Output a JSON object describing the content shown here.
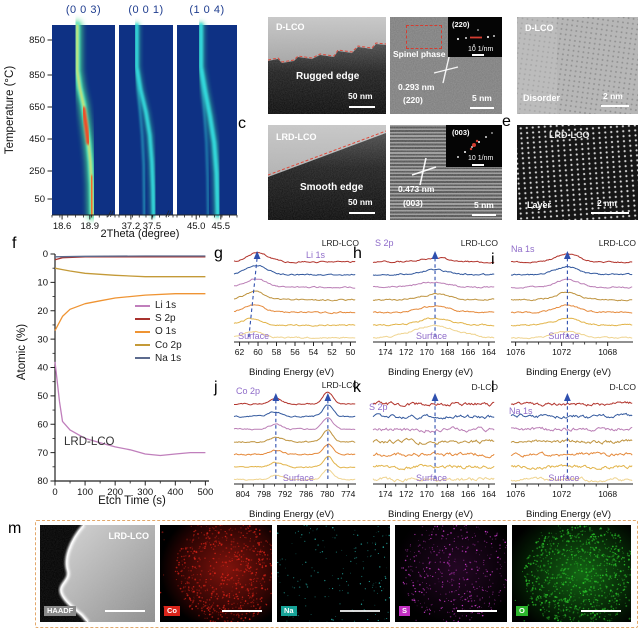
{
  "colors": {
    "navy_title": "#1f3d8f",
    "arrow_blue": "#2e4fae",
    "purple_label": "#8f6cc9",
    "dashed_border": "#e4a96b",
    "heat_bg": "#0e3184",
    "trace_colors": [
      "#b2342c",
      "#33599e",
      "#bb7fb6",
      "#bf9440",
      "#e58a3c",
      "#e2b44a",
      "#efd490"
    ]
  },
  "letters": {
    "c": "c",
    "e": "e",
    "f": "f",
    "g": "g",
    "h": "h",
    "i": "i",
    "j": "j",
    "k": "k",
    "l": "l",
    "m": "m"
  },
  "tem": {
    "d_rugged": {
      "sample": "D-LCO",
      "caption": "Rugged edge",
      "scale_bar": "50 nm"
    },
    "spinel": {
      "caption": "Spinel phase",
      "d_spacing": "0.293 nm",
      "plane": "(220)",
      "scale_bar": "5 nm",
      "inset_plane": "(220)",
      "inset_scale": "10 1/nm"
    },
    "d_disorder": {
      "sample": "D-LCO",
      "caption": "Disorder",
      "scale_bar": "2 nm"
    },
    "lrd_smooth": {
      "sample": "LRD-LCO",
      "caption": "Smooth edge",
      "scale_bar": "50 nm"
    },
    "lrd_003": {
      "d_spacing": "0.473 nm",
      "plane": "(003)",
      "scale_bar": "5 nm",
      "inset_plane": "(003)",
      "inset_scale": "10 1/nm"
    },
    "lrd_layer": {
      "sample": "LRD-LCO",
      "caption": "Layer",
      "scale_bar": "2 nm"
    }
  },
  "eds": {
    "sample": "LRD-LCO",
    "maps": [
      {
        "name": "HAADF",
        "color": "#8a8a8a"
      },
      {
        "name": "Co",
        "color": "#da251b"
      },
      {
        "name": "Na",
        "color": "#17a398"
      },
      {
        "name": "S",
        "color": "#c32fc3"
      },
      {
        "name": "O",
        "color": "#2db52d"
      }
    ]
  },
  "chart_data": [
    {
      "id": "xrd",
      "type": "heatmap",
      "ylabel": "Temperature (°C)",
      "xlabel": "2Theta (degree)",
      "axis_break": "//",
      "y_ticks": [
        "850",
        "850",
        "650",
        "450",
        "250",
        "50"
      ],
      "panels": [
        {
          "title": "(0 0 3)",
          "x_ticks": [
            "18.6",
            "18.9"
          ]
        },
        {
          "title": "(0 0 1)",
          "x_ticks": [
            "37.2",
            "37.5"
          ]
        },
        {
          "title": "(1 0 4)",
          "x_ticks": [
            "45.0",
            "45.5"
          ]
        }
      ],
      "description": "In-situ XRD intensity maps: (0 0 3), (0 0 1) and (1 0 4) reflections shift to higher angle on cooling from ~900 to 50 °C; jet colormap on dark-blue background"
    },
    {
      "id": "f",
      "type": "line",
      "xlabel": "Etch Time  (s)",
      "ylabel": "Atomic (%)",
      "annotation": "LRD-LCO",
      "x_ticks": [
        0,
        100,
        200,
        300,
        400,
        500
      ],
      "y_ticks": [
        0,
        10,
        20,
        30,
        40,
        50,
        60,
        70,
        80
      ],
      "xlim": [
        0,
        512
      ],
      "ylim": [
        0,
        80
      ],
      "y_inverted": true,
      "legend_position": "right-middle",
      "series": [
        {
          "name": "Li 1s",
          "color": "#c07fbc",
          "x": [
            0,
            15,
            25,
            50,
            100,
            150,
            200,
            250,
            300,
            350,
            400,
            450,
            500
          ],
          "y": [
            38,
            52,
            59,
            62,
            65,
            66.5,
            68,
            69,
            70.5,
            71,
            70.5,
            70,
            70
          ]
        },
        {
          "name": "S 2p",
          "color": "#a8322e",
          "x": [
            0,
            25,
            100,
            200,
            300,
            400,
            500
          ],
          "y": [
            2,
            1.3,
            1,
            1,
            1,
            1,
            1
          ]
        },
        {
          "name": "O 1s",
          "color": "#ef9433",
          "x": [
            0,
            15,
            25,
            50,
            100,
            150,
            200,
            300,
            400,
            500
          ],
          "y": [
            27,
            24,
            22,
            19.5,
            17.5,
            16.5,
            15.5,
            14.5,
            14,
            14
          ]
        },
        {
          "name": "Co 2p",
          "color": "#c49a38",
          "x": [
            0,
            25,
            50,
            100,
            200,
            300,
            400,
            500
          ],
          "y": [
            5,
            5.5,
            6,
            6.8,
            7.5,
            8,
            8,
            8
          ]
        },
        {
          "name": "Na 1s",
          "color": "#5c6b8e",
          "x": [
            0,
            100,
            300,
            500
          ],
          "y": [
            1,
            0.8,
            0.7,
            0.7
          ]
        }
      ]
    },
    {
      "id": "g",
      "type": "line",
      "label": "Li 1s",
      "sample": "LRD-LCO",
      "surface_label": "Surface",
      "xlabel": "Binding Energy (eV)",
      "x_ticks": [
        62,
        60,
        58,
        56,
        54,
        52,
        50
      ],
      "xlim": [
        62.6,
        49.4
      ],
      "minor_div": 2,
      "n_traces": 7,
      "amp_profile": "top",
      "noise": 0.5,
      "peaks": [
        {
          "center": 60.1,
          "width": 1.1,
          "amp": 10,
          "shift_per_trace": 0.09
        }
      ]
    },
    {
      "id": "h",
      "type": "line",
      "label": "S 2p",
      "sample": "LRD-LCO",
      "surface_label": "Surface",
      "xlabel": "Binding Energy (eV)",
      "x_ticks": [
        174,
        172,
        170,
        168,
        166,
        164
      ],
      "xlim": [
        175.2,
        163.4
      ],
      "minor_div": 2,
      "n_traces": 7,
      "amp_profile": "bottom",
      "noise": 0.55,
      "peaks": [
        {
          "center": 169.2,
          "width": 1.4,
          "amp": 7,
          "surface_boost": true
        }
      ]
    },
    {
      "id": "i",
      "type": "line",
      "label": "Na 1s",
      "sample": "LRD-LCO",
      "surface_label": "Surface",
      "xlabel": "Binding Energy (eV)",
      "x_ticks": [
        1076,
        1072,
        1068
      ],
      "xlim": [
        1076.4,
        1065.8
      ],
      "minor_div": 4,
      "n_traces": 7,
      "amp_profile": "even",
      "noise": 0.5,
      "peaks": [
        {
          "center": 1071.5,
          "width": 1.0,
          "amp": 8
        }
      ]
    },
    {
      "id": "j",
      "type": "line",
      "label": "Co 2p",
      "sample": "LRD-LCO",
      "surface_label": "Surface",
      "xlabel": "Binding Energy (eV)",
      "x_ticks": [
        804,
        798,
        792,
        786,
        780,
        774
      ],
      "xlim": [
        806.5,
        771.8
      ],
      "minor_div": 2,
      "n_traces": 7,
      "amp_profile": "even",
      "noise": 0.5,
      "peaks": [
        {
          "center": 794.6,
          "width": 1.8,
          "amp": 5
        },
        {
          "center": 779.8,
          "width": 1.4,
          "amp": 12
        }
      ]
    },
    {
      "id": "k",
      "type": "line",
      "label": "S 2p",
      "sample": "D-LCO",
      "surface_label": "Surface",
      "xlabel": "Binding Energy (eV)",
      "x_ticks": [
        174,
        172,
        170,
        168,
        166,
        164
      ],
      "xlim": [
        175.2,
        163.4
      ],
      "minor_div": 2,
      "n_traces": 7,
      "flat": true,
      "noise": 1.3,
      "peaks": [
        {
          "center": 169.2,
          "width": 1.4,
          "amp": 0
        }
      ]
    },
    {
      "id": "l",
      "type": "line",
      "label": "Na 1s",
      "sample": "D-LCO",
      "surface_label": "Surface",
      "xlabel": "Binding Energy (eV)",
      "x_ticks": [
        1076,
        1072,
        1068
      ],
      "xlim": [
        1076.4,
        1065.8
      ],
      "minor_div": 4,
      "n_traces": 7,
      "flat": true,
      "noise": 1.2,
      "peaks": [
        {
          "center": 1071.5,
          "width": 1.0,
          "amp": 0
        }
      ]
    }
  ]
}
